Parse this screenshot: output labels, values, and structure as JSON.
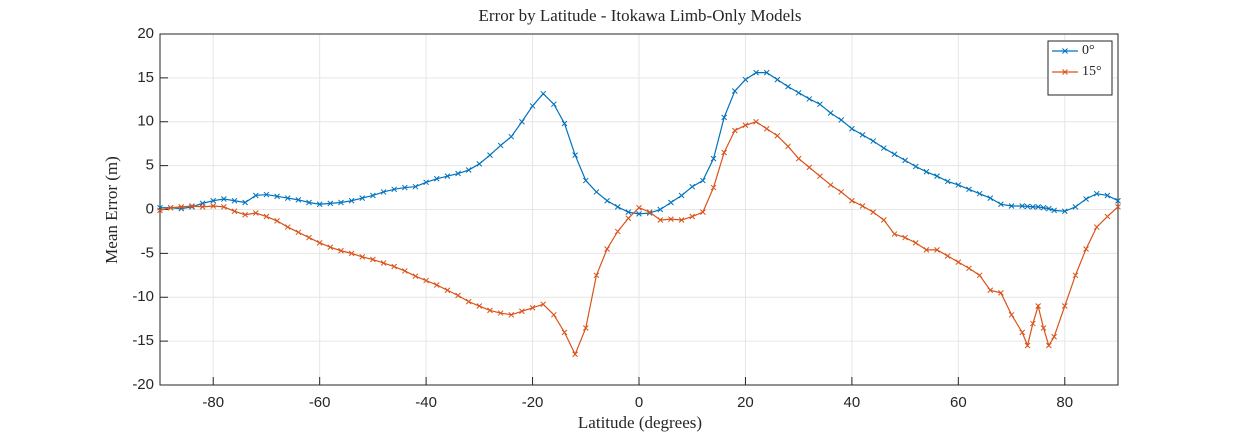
{
  "chart_data": {
    "type": "line",
    "title": "Error by Latitude - Itokawa Limb-Only Models",
    "x_label": "Latitude (degrees)",
    "y_label": "Mean Error (m)",
    "x": [
      -90,
      -88,
      -86,
      -84,
      -82,
      -80,
      -78,
      -76,
      -74,
      -72,
      -70,
      -68,
      -66,
      -64,
      -62,
      -60,
      -58,
      -56,
      -54,
      -52,
      -50,
      -48,
      -46,
      -44,
      -42,
      -40,
      -38,
      -36,
      -34,
      -32,
      -30,
      -28,
      -26,
      -24,
      -22,
      -20,
      -18,
      -16,
      -14,
      -12,
      -10,
      -8,
      -6,
      -4,
      -2,
      0,
      2,
      4,
      6,
      8,
      10,
      12,
      14,
      16,
      18,
      20,
      22,
      24,
      26,
      28,
      30,
      32,
      34,
      36,
      38,
      40,
      42,
      44,
      46,
      48,
      50,
      52,
      54,
      56,
      58,
      60,
      62,
      64,
      66,
      68,
      70,
      72,
      73,
      74,
      75,
      76,
      77,
      78,
      80,
      82,
      84,
      86,
      88,
      90
    ],
    "series": [
      {
        "name": "0°",
        "color": "#0072bd",
        "values": [
          0.2,
          0.2,
          0.1,
          0.3,
          0.7,
          1.0,
          1.2,
          1.0,
          0.8,
          1.6,
          1.7,
          1.5,
          1.3,
          1.1,
          0.8,
          0.6,
          0.7,
          0.8,
          1.0,
          1.3,
          1.6,
          2.0,
          2.3,
          2.5,
          2.6,
          3.1,
          3.5,
          3.8,
          4.1,
          4.5,
          5.2,
          6.2,
          7.3,
          8.3,
          10.0,
          11.8,
          13.2,
          12.0,
          9.8,
          6.2,
          3.3,
          2.0,
          1.0,
          0.3,
          -0.3,
          -0.5,
          -0.4,
          0.0,
          0.8,
          1.6,
          2.6,
          3.3,
          5.8,
          10.5,
          13.5,
          14.8,
          15.6,
          15.6,
          14.8,
          14.0,
          13.3,
          12.6,
          12.0,
          11.0,
          10.2,
          9.2,
          8.5,
          7.8,
          7.0,
          6.3,
          5.6,
          4.9,
          4.3,
          3.8,
          3.2,
          2.8,
          2.3,
          1.8,
          1.3,
          0.6,
          0.4,
          0.4,
          0.35,
          0.3,
          0.3,
          0.2,
          0.1,
          -0.1,
          -0.2,
          0.3,
          1.2,
          1.8,
          1.6,
          1.0
        ]
      },
      {
        "name": "15°",
        "color": "#d95319",
        "values": [
          -0.1,
          0.2,
          0.3,
          0.4,
          0.3,
          0.4,
          0.3,
          -0.2,
          -0.6,
          -0.4,
          -0.8,
          -1.3,
          -2.0,
          -2.6,
          -3.2,
          -3.8,
          -4.3,
          -4.7,
          -5.0,
          -5.4,
          -5.7,
          -6.1,
          -6.5,
          -7.0,
          -7.6,
          -8.1,
          -8.6,
          -9.2,
          -9.8,
          -10.5,
          -11.0,
          -11.5,
          -11.8,
          -12.0,
          -11.6,
          -11.2,
          -10.8,
          -12.0,
          -14.0,
          -16.5,
          -13.5,
          -7.5,
          -4.5,
          -2.5,
          -1.0,
          0.2,
          -0.3,
          -1.2,
          -1.1,
          -1.2,
          -0.8,
          -0.3,
          2.5,
          6.5,
          9.0,
          9.6,
          10.0,
          9.2,
          8.4,
          7.2,
          5.8,
          4.8,
          3.8,
          2.8,
          2.0,
          1.0,
          0.4,
          -0.3,
          -1.2,
          -2.8,
          -3.2,
          -3.8,
          -4.6,
          -4.6,
          -5.3,
          -6.0,
          -6.7,
          -7.5,
          -9.2,
          -9.5,
          -12.0,
          -14.0,
          -15.5,
          -13.0,
          -11.0,
          -13.5,
          -15.5,
          -14.5,
          -11.0,
          -7.5,
          -4.5,
          -2.0,
          -0.8,
          0.3
        ]
      }
    ],
    "xlim": [
      -90,
      90
    ],
    "xticks": [
      -80,
      -60,
      -40,
      -20,
      0,
      20,
      40,
      60,
      80
    ],
    "ylim": [
      -20,
      20
    ],
    "yticks": [
      -20,
      -15,
      -10,
      -5,
      0,
      5,
      10,
      15,
      20
    ],
    "grid": true,
    "legend": "top-right",
    "marker": "x"
  }
}
